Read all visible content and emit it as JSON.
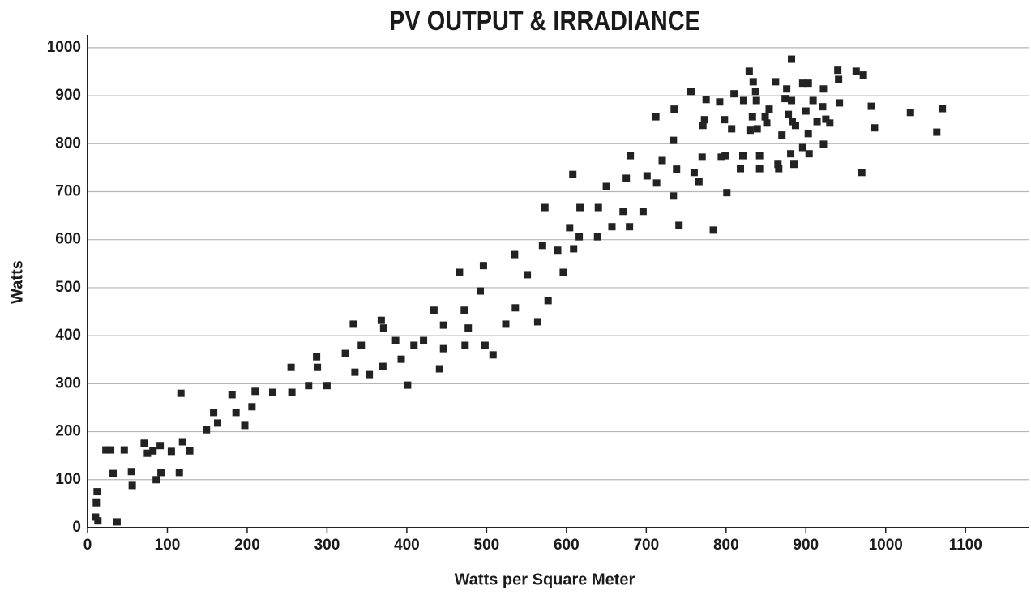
{
  "chart_data": {
    "type": "scatter",
    "title": "PV OUTPUT & IRRADIANCE",
    "xlabel": "Watts per Square Meter",
    "ylabel": "Watts",
    "color": "#222222",
    "grid": true,
    "xlim": [
      0,
      1180
    ],
    "ylim": [
      0,
      1020
    ],
    "xticks": [
      0,
      100,
      200,
      300,
      400,
      500,
      600,
      700,
      800,
      900,
      1000,
      1100
    ],
    "yticks": [
      0,
      100,
      200,
      300,
      400,
      500,
      600,
      700,
      800,
      900,
      1000
    ],
    "x": [
      12,
      11,
      10,
      13,
      23,
      29,
      32,
      37,
      46,
      55,
      56,
      71,
      75,
      82,
      86,
      91,
      92,
      105,
      115,
      117,
      119,
      128,
      149,
      158,
      163,
      181,
      186,
      197,
      206,
      210,
      232,
      255,
      256,
      277,
      287,
      288,
      300,
      323,
      333,
      335,
      343,
      353,
      368,
      371,
      370,
      386,
      393,
      401,
      409,
      421,
      434,
      441,
      446,
      446,
      466,
      472,
      473,
      477,
      492,
      496,
      498,
      508,
      524,
      535,
      536,
      551,
      564,
      570,
      573,
      577,
      589,
      596,
      604,
      608,
      609,
      616,
      617,
      639,
      640,
      650,
      657,
      671,
      675,
      679,
      680,
      696,
      701,
      712,
      713,
      720,
      734,
      734,
      735,
      738,
      741,
      756,
      760,
      766,
      770,
      771,
      773,
      775,
      784,
      792,
      794,
      798,
      799,
      801,
      807,
      810,
      818,
      821,
      822,
      829,
      830,
      833,
      834,
      837,
      838,
      839,
      842,
      842,
      849,
      851,
      854,
      862,
      865,
      866,
      870,
      874,
      876,
      878,
      881,
      882,
      882,
      883,
      885,
      887,
      896,
      896,
      900,
      903,
      903,
      904,
      909,
      914,
      921,
      922,
      922,
      925,
      930,
      940,
      941,
      942,
      963,
      970,
      972,
      982,
      986,
      1031,
      1064,
      1071
    ],
    "values": [
      75,
      52,
      22,
      14,
      162,
      162,
      113,
      12,
      162,
      117,
      88,
      176,
      155,
      160,
      100,
      171,
      115,
      159,
      115,
      280,
      179,
      160,
      204,
      240,
      218,
      277,
      240,
      213,
      252,
      284,
      282,
      334,
      282,
      296,
      356,
      334,
      296,
      363,
      424,
      324,
      380,
      319,
      432,
      416,
      336,
      390,
      351,
      297,
      380,
      390,
      453,
      331,
      422,
      373,
      532,
      453,
      380,
      416,
      493,
      546,
      380,
      360,
      424,
      569,
      458,
      527,
      429,
      588,
      667,
      473,
      578,
      532,
      625,
      736,
      581,
      606,
      667,
      606,
      667,
      711,
      627,
      659,
      728,
      627,
      775,
      659,
      733,
      856,
      718,
      765,
      691,
      807,
      872,
      747,
      630,
      909,
      740,
      721,
      772,
      838,
      850,
      892,
      620,
      887,
      772,
      850,
      775,
      698,
      831,
      904,
      748,
      775,
      890,
      951,
      828,
      856,
      929,
      909,
      890,
      831,
      775,
      748,
      856,
      843,
      872,
      929,
      757,
      748,
      818,
      894,
      914,
      861,
      779,
      976,
      890,
      846,
      757,
      838,
      792,
      926,
      868,
      926,
      821,
      779,
      890,
      846,
      877,
      914,
      799,
      851,
      843,
      953,
      934,
      885,
      951,
      740,
      943,
      878,
      833,
      865,
      824,
      873
    ]
  }
}
